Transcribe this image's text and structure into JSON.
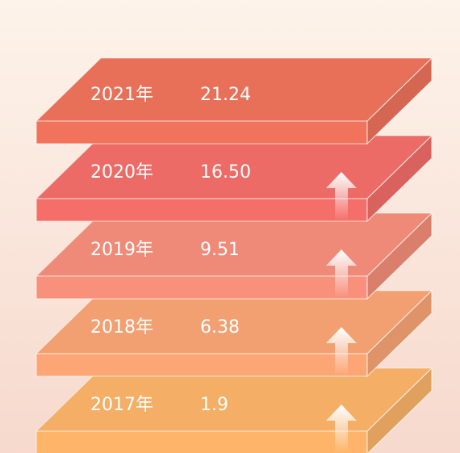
{
  "items": [
    {
      "year": "2021年",
      "value": "21.24",
      "color": "#e86f58"
    },
    {
      "year": "2020年",
      "value": "16.50",
      "color": "#ec6b66"
    },
    {
      "year": "2019年",
      "value": "9.51",
      "color": "#ee8a77"
    },
    {
      "year": "2018年",
      "value": "6.38",
      "color": "#f2a071"
    },
    {
      "year": "2017年",
      "value": "1.9",
      "color": "#f4ae66"
    }
  ]
}
